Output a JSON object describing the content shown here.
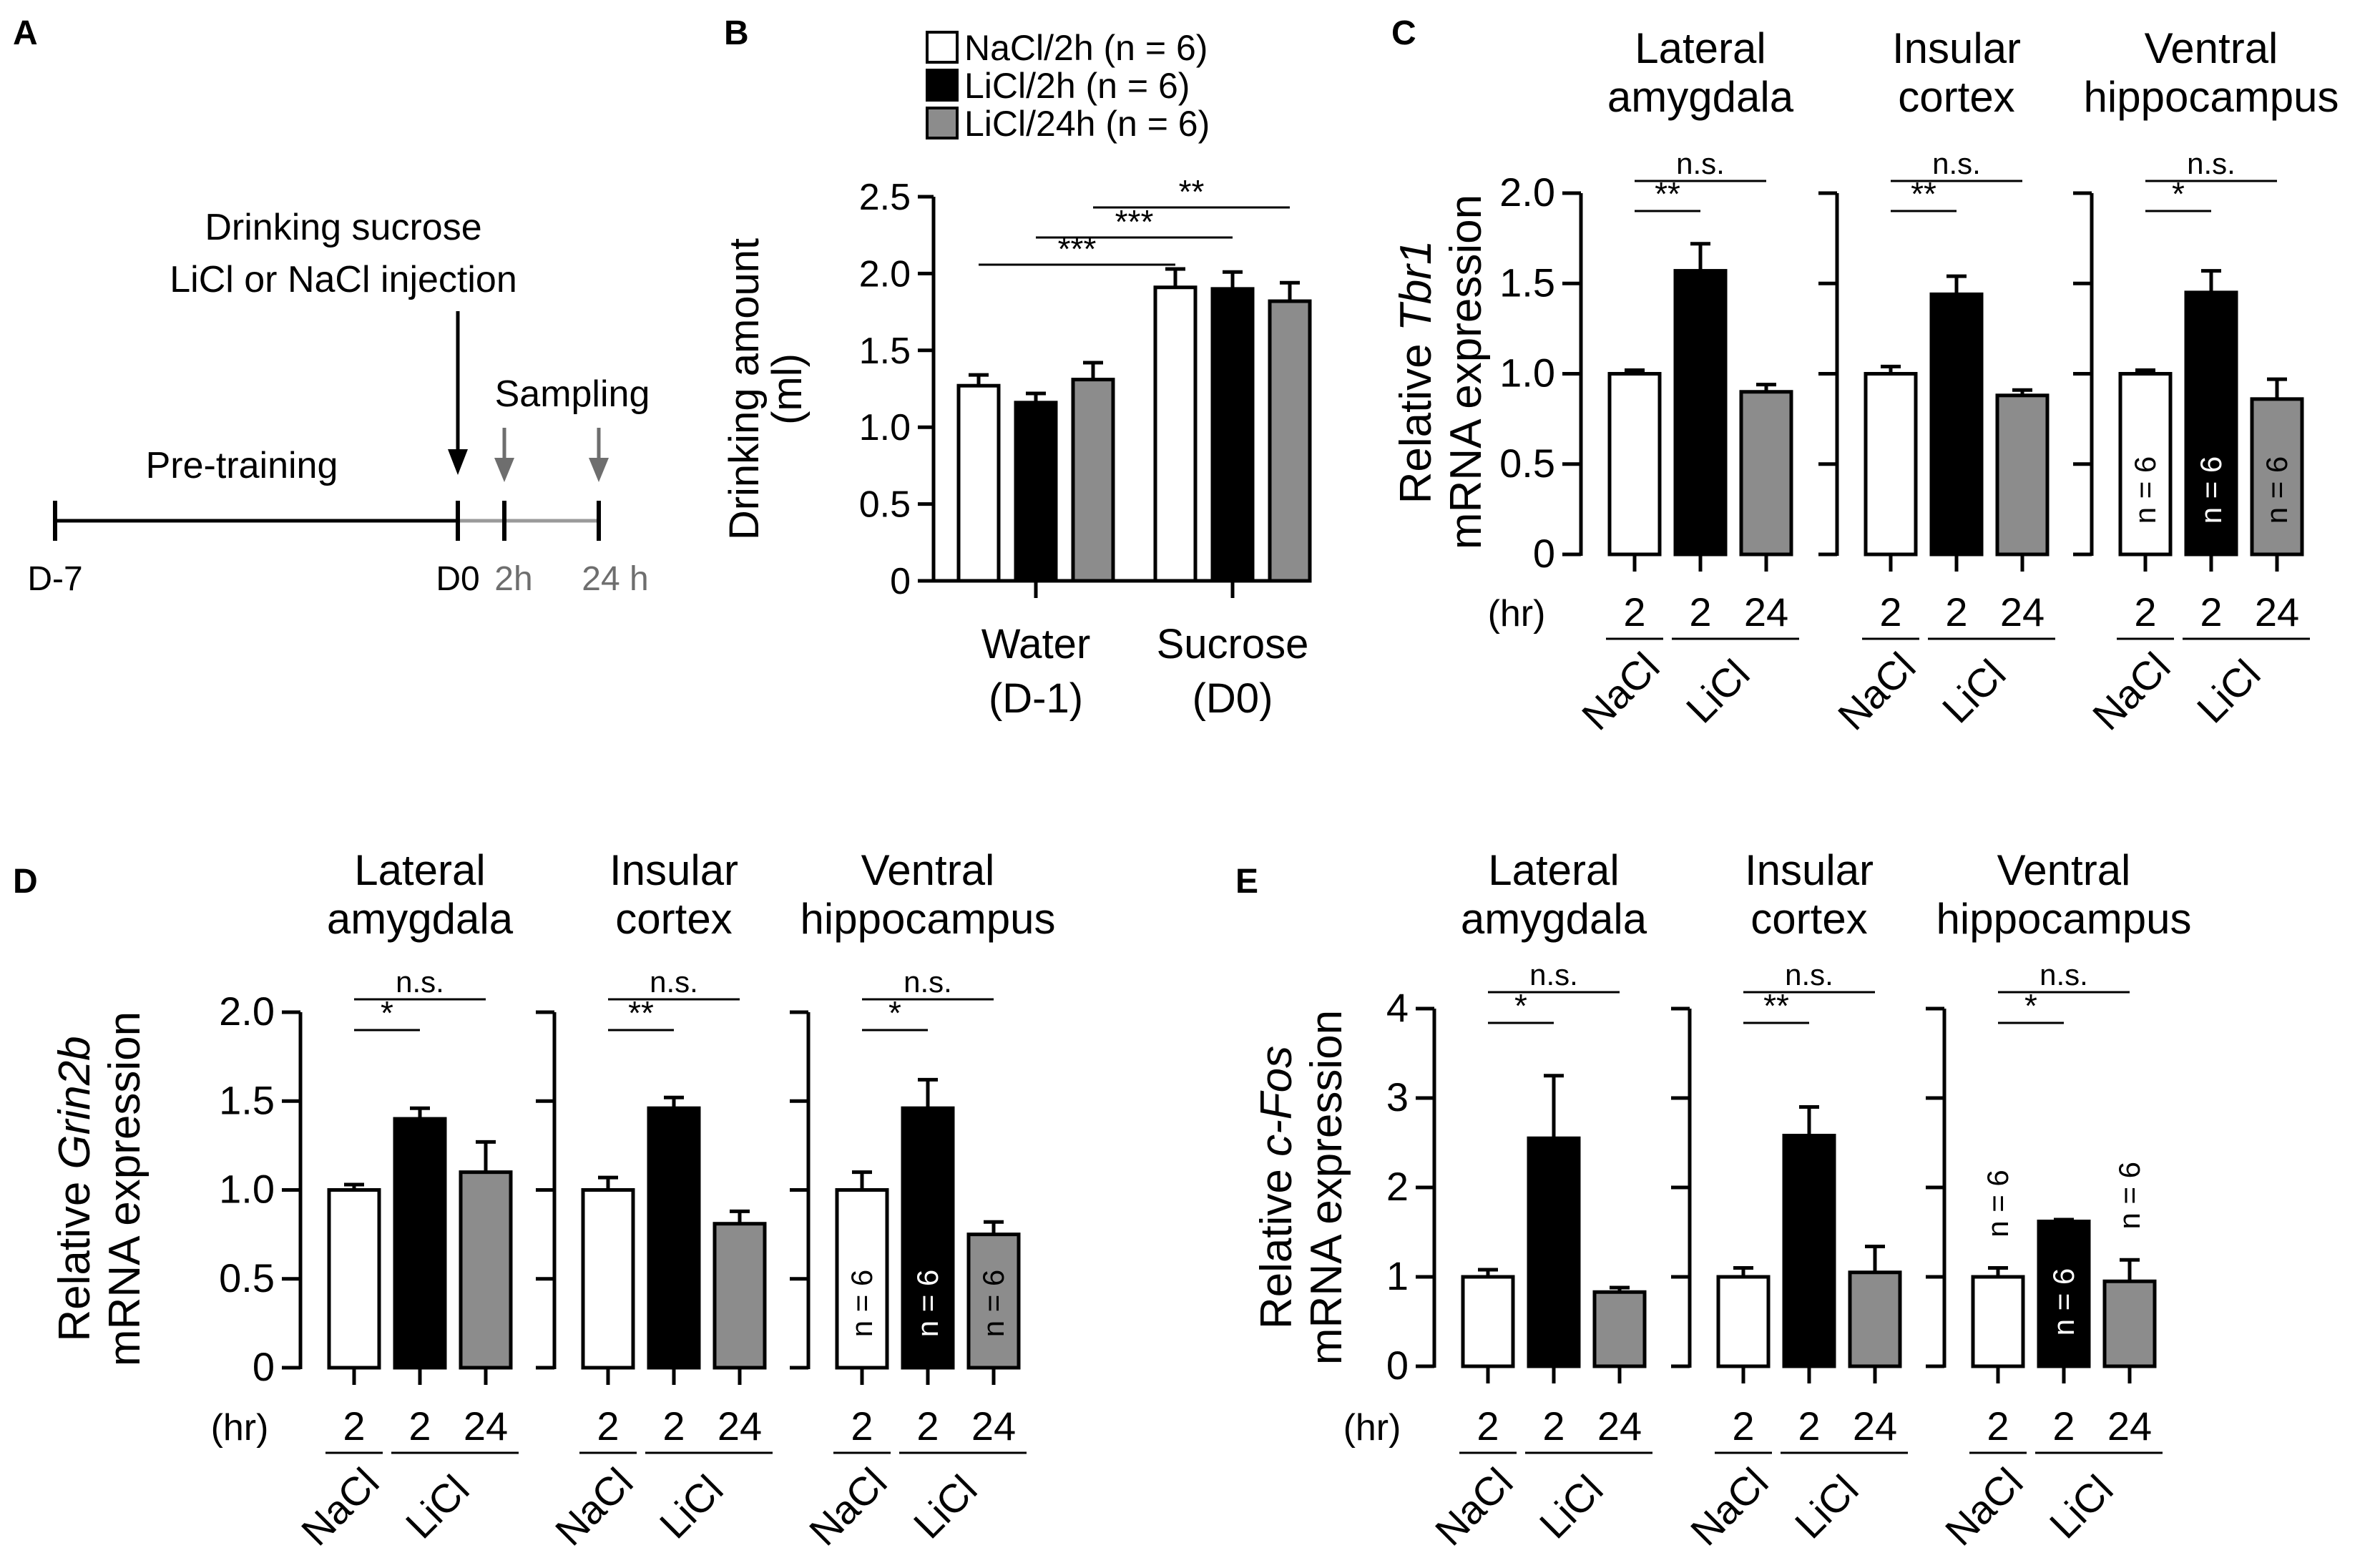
{
  "colors": {
    "nacl": "#ffffff",
    "licl2h": "#000000",
    "licl24h": "#8c8c8c",
    "axis": "#000000",
    "timeline_gray": "#9a9a9a",
    "arrow_gray": "#6e6e6e"
  },
  "panelA": {
    "letter": "A",
    "event_line1": "Drinking sucrose",
    "event_line2": "LiCl or NaCl injection",
    "sampling": "Sampling",
    "pretraining": "Pre-training",
    "ticks": [
      "D-7",
      "D0",
      "2h",
      "24 h"
    ]
  },
  "legend": {
    "items": [
      {
        "label": "NaCl/2h (n = 6)",
        "color": "#ffffff"
      },
      {
        "label": "LiCl/2h (n = 6)",
        "color": "#000000"
      },
      {
        "label": "LiCl/24h (n = 6)",
        "color": "#8c8c8c"
      }
    ]
  },
  "common": {
    "hr": "(hr)",
    "bar_x_labels": [
      "2",
      "2",
      "24"
    ],
    "groups": [
      "NaCl",
      "LiCl"
    ],
    "n_label": "n = 6"
  },
  "chart_data": [
    {
      "id": "B",
      "letter": "B",
      "type": "bar",
      "ylabel_line1": "Drinking amount",
      "ylabel_line2": "(ml)",
      "ylim": [
        0,
        2.5
      ],
      "yticks": [
        "0",
        "0.5",
        "1.0",
        "1.5",
        "2.0",
        "2.5"
      ],
      "categories": [
        "Water",
        "Sucrose"
      ],
      "category_sub": [
        "(D-1)",
        "(D0)"
      ],
      "series": [
        {
          "name": "NaCl/2h",
          "values": [
            1.27,
            1.91
          ],
          "errors": [
            0.07,
            0.12
          ]
        },
        {
          "name": "LiCl/2h",
          "values": [
            1.16,
            1.9
          ],
          "errors": [
            0.06,
            0.11
          ]
        },
        {
          "name": "LiCl/24h",
          "values": [
            1.31,
            1.82
          ],
          "errors": [
            0.11,
            0.12
          ]
        }
      ],
      "significance": [
        "***",
        "***",
        "**"
      ]
    },
    {
      "id": "C",
      "letter": "C",
      "type": "bar",
      "gene": "Tbr1",
      "ylabel_pre": "Relative ",
      "ylabel_line2": "mRNA expression",
      "ylim": [
        0,
        2.0
      ],
      "yticks": [
        "0",
        "0.5",
        "1.0",
        "1.5",
        "2.0"
      ],
      "subpanels": [
        {
          "title1": "Lateral",
          "title2": "amygdala",
          "values": [
            1.0,
            1.57,
            0.9
          ],
          "errors": [
            0.02,
            0.15,
            0.04
          ],
          "sig_near": "**",
          "sig_far": "n.s."
        },
        {
          "title1": "Insular",
          "title2": "cortex",
          "values": [
            1.0,
            1.44,
            0.88
          ],
          "errors": [
            0.04,
            0.1,
            0.03
          ],
          "sig_near": "**",
          "sig_far": "n.s."
        },
        {
          "title1": "Ventral",
          "title2": "hippocampus",
          "values": [
            1.0,
            1.45,
            0.86
          ],
          "errors": [
            0.02,
            0.12,
            0.11
          ],
          "sig_near": "*",
          "sig_far": "n.s."
        }
      ]
    },
    {
      "id": "D",
      "letter": "D",
      "type": "bar",
      "gene": "Grin2b",
      "ylabel_pre": "Relative ",
      "ylabel_line2": "mRNA expression",
      "ylim": [
        0,
        2.0
      ],
      "yticks": [
        "0",
        "0.5",
        "1.0",
        "1.5",
        "2.0"
      ],
      "subpanels": [
        {
          "title1": "Lateral",
          "title2": "amygdala",
          "values": [
            1.0,
            1.4,
            1.1
          ],
          "errors": [
            0.03,
            0.06,
            0.17
          ],
          "sig_near": "*",
          "sig_far": "n.s."
        },
        {
          "title1": "Insular",
          "title2": "cortex",
          "values": [
            1.0,
            1.46,
            0.81
          ],
          "errors": [
            0.07,
            0.06,
            0.07
          ],
          "sig_near": "**",
          "sig_far": "n.s."
        },
        {
          "title1": "Ventral",
          "title2": "hippocampus",
          "values": [
            1.0,
            1.46,
            0.75
          ],
          "errors": [
            0.1,
            0.16,
            0.07
          ],
          "sig_near": "*",
          "sig_far": "n.s."
        }
      ]
    },
    {
      "id": "E",
      "letter": "E",
      "type": "bar",
      "gene": "c-Fos",
      "ylabel_pre": "Relative ",
      "ylabel_line2": "mRNA expression",
      "ylim": [
        0,
        4
      ],
      "yticks": [
        "0",
        "1",
        "2",
        "3",
        "4"
      ],
      "subpanels": [
        {
          "title1": "Lateral",
          "title2": "amygdala",
          "values": [
            1.0,
            2.55,
            0.83
          ],
          "errors": [
            0.08,
            0.7,
            0.05
          ],
          "sig_near": "*",
          "sig_far": "n.s."
        },
        {
          "title1": "Insular",
          "title2": "cortex",
          "values": [
            1.0,
            2.58,
            1.05
          ],
          "errors": [
            0.1,
            0.32,
            0.29
          ],
          "sig_near": "**",
          "sig_far": "n.s."
        },
        {
          "title1": "Ventral",
          "title2": "hippocampus",
          "values": [
            1.0,
            1.62,
            0.95
          ],
          "errors": [
            0.1,
            0.02,
            0.24
          ],
          "sig_near": "*",
          "sig_far": "n.s."
        }
      ]
    }
  ]
}
